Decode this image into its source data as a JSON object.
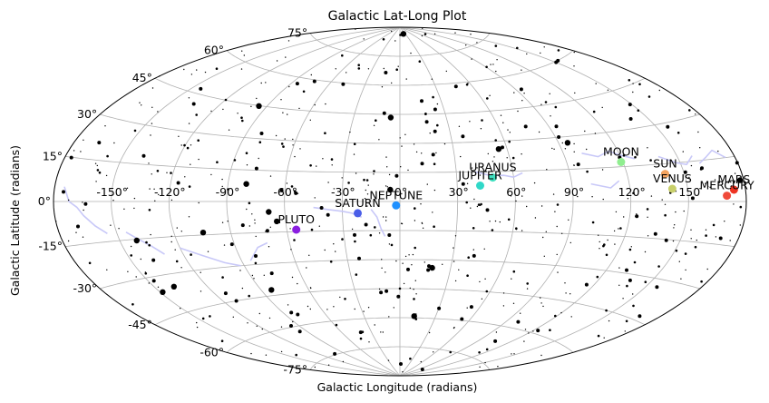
{
  "chart_data": {
    "type": "scatter",
    "projection": "aitoff",
    "title": "Galactic Lat-Long Plot",
    "xlabel": "Galactic Longitude (radians)",
    "ylabel": "Galactic Latitude (radians)",
    "xlim": [
      -180,
      180
    ],
    "ylim": [
      -90,
      90
    ],
    "grid": true,
    "x_ticks": [
      "-150°",
      "-120°",
      "-90°",
      "-60°",
      "-30°",
      "0°",
      "30°",
      "60°",
      "90°",
      "120°",
      "150"
    ],
    "y_ticks": [
      {
        "value": 75,
        "label": "75°"
      },
      {
        "value": 60,
        "label": "60°"
      },
      {
        "value": 45,
        "label": "45°"
      },
      {
        "value": 30,
        "label": "30°"
      },
      {
        "value": 15,
        "label": "15°"
      },
      {
        "value": 0,
        "label": "0°"
      },
      {
        "value": -15,
        "label": "-15°"
      },
      {
        "value": -30,
        "label": "-30°"
      },
      {
        "value": -45,
        "label": "-45°"
      },
      {
        "value": -60,
        "label": "-60°"
      },
      {
        "value": -75,
        "label": "-75°"
      }
    ],
    "planets": [
      {
        "name": "MOON",
        "lon": 119,
        "lat": 17,
        "color": "#90ee90"
      },
      {
        "name": "SUN",
        "lon": 140,
        "lat": 11,
        "color": "#f4a460"
      },
      {
        "name": "VENUS",
        "lon": 142,
        "lat": 5,
        "color": "#c8cf6a"
      },
      {
        "name": "MARS",
        "lon": 174,
        "lat": 4,
        "color": "#ee3322"
      },
      {
        "name": "MERCURY",
        "lon": 170,
        "lat": 2,
        "color": "#f04a3a"
      },
      {
        "name": "URANUS",
        "lon": 49,
        "lat": 12,
        "color": "#40e0c0"
      },
      {
        "name": "JUPITER",
        "lon": 42,
        "lat": 8,
        "color": "#30d8c8"
      },
      {
        "name": "NEPTUNE",
        "lon": -2,
        "lat": -2,
        "color": "#1e90ff"
      },
      {
        "name": "SATURN",
        "lon": -22,
        "lat": -6,
        "color": "#4a5ee8"
      },
      {
        "name": "PLUTO",
        "lon": -55,
        "lat": -14,
        "color": "#8a1ee0"
      }
    ],
    "stars_color": "#000000",
    "constellation_color": "#c8c8f8"
  }
}
